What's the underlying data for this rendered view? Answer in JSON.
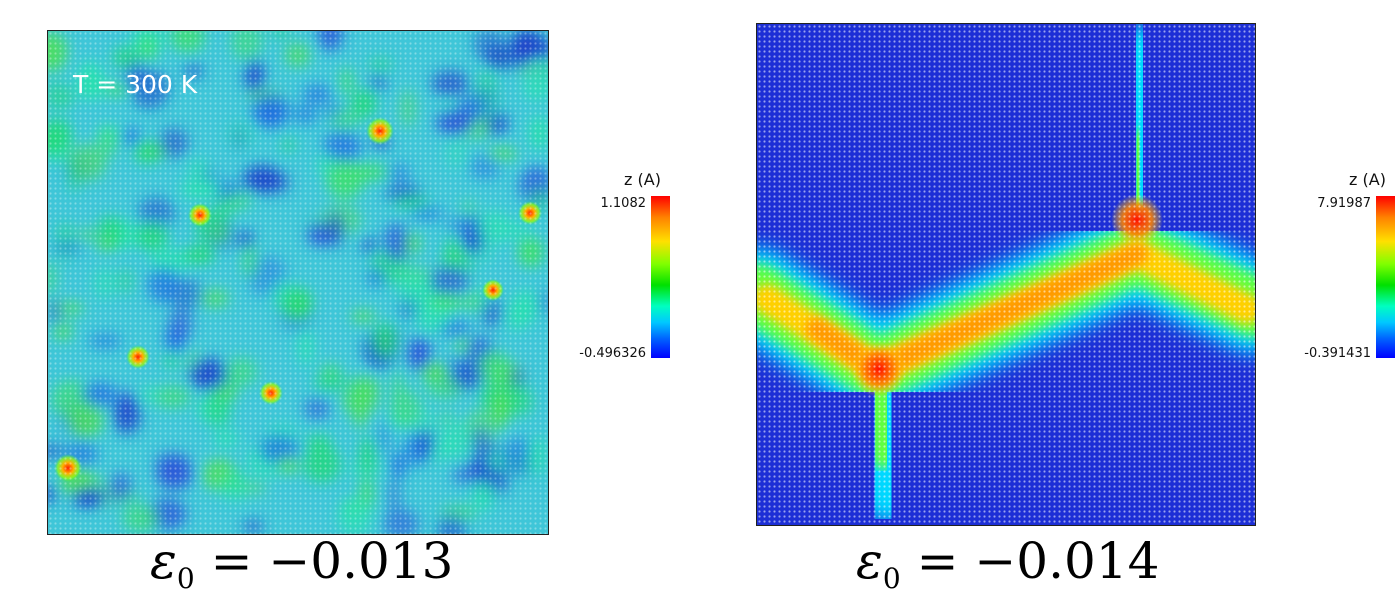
{
  "panels": [
    {
      "annotation": "T = 300 K",
      "colorbar": {
        "title": "z (A)",
        "max": "1.1082",
        "min": "-0.496326"
      },
      "caption": {
        "symbol": "ε",
        "subscript": "0",
        "value": "= −0.013"
      }
    },
    {
      "colorbar": {
        "title": "z (A)",
        "max": "7.91987",
        "min": "-0.391431"
      },
      "caption": {
        "symbol": "ε",
        "subscript": "0",
        "value": "= −0.014"
      }
    }
  ],
  "colors": {
    "scale_high": "#ff0000",
    "scale_mid": "#00e000",
    "scale_low": "#0000ff",
    "left_base": "#3fc6d8",
    "right_base": "#1d2fd6"
  }
}
